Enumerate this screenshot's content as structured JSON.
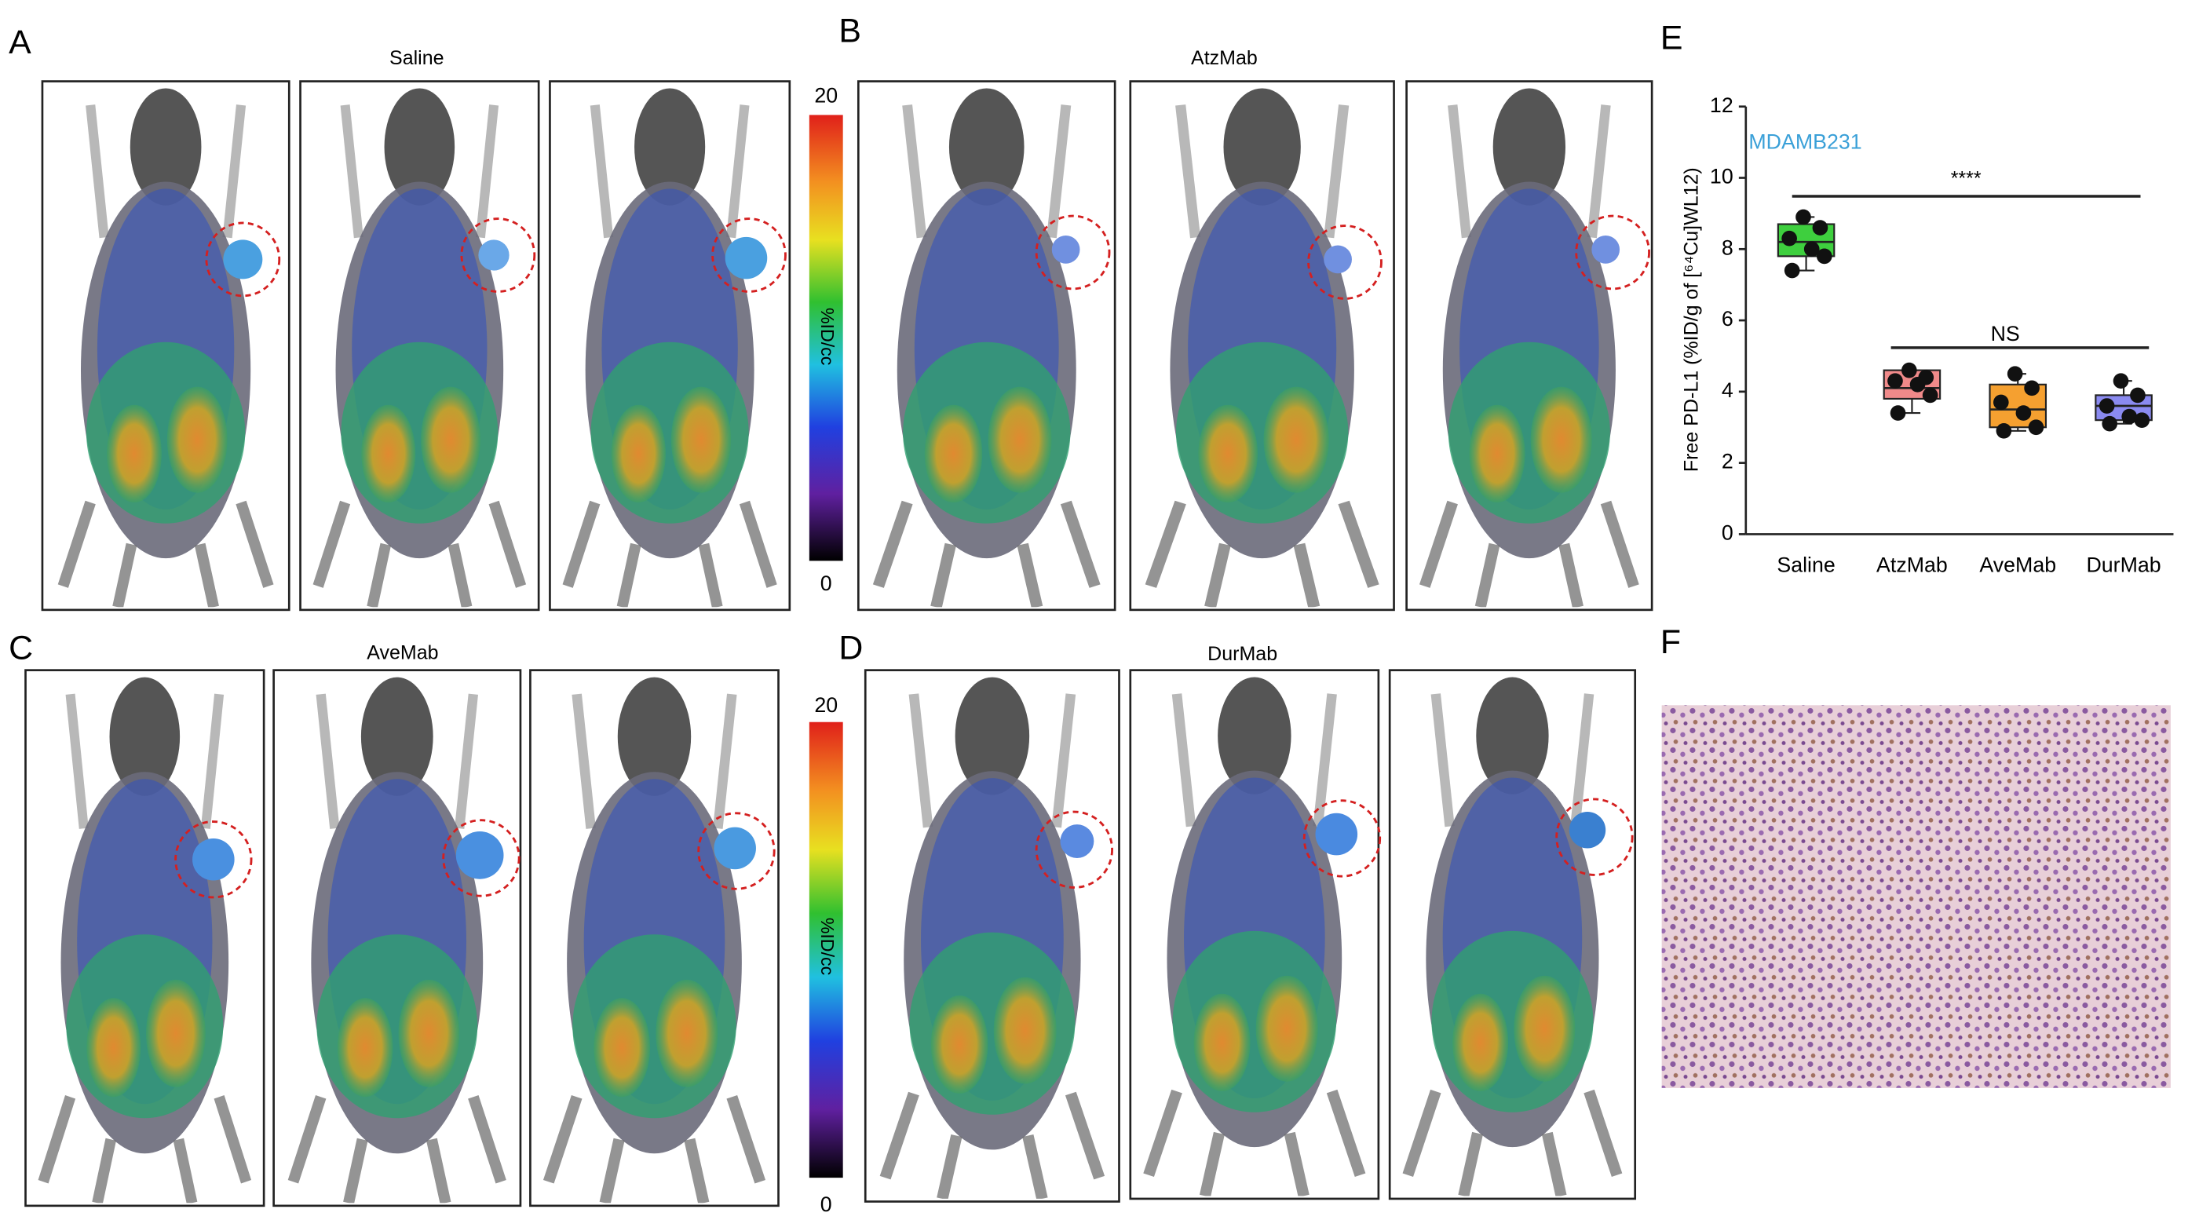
{
  "panels": [
    {
      "letter": "A",
      "title": "Saline"
    },
    {
      "letter": "B",
      "title": "AtzMab"
    },
    {
      "letter": "C",
      "title": "AveMab"
    },
    {
      "letter": "D",
      "title": "DurMab"
    },
    {
      "letter": "E"
    },
    {
      "letter": "F"
    }
  ],
  "colorbars": [
    {
      "max": 20,
      "min": 0,
      "label": "%ID/cc"
    },
    {
      "max": 20,
      "min": 0,
      "label": "%ID/cc"
    }
  ],
  "chart_data": {
    "type": "box",
    "ylabel": "Free PD-L1 (%ID/g of [⁶⁴Cu]WL12)",
    "categories": [
      "Saline",
      "AtzMab",
      "AveMab",
      "DurMab"
    ],
    "colors": [
      "#3ecf3e",
      "#f08a8a",
      "#f5a030",
      "#8a8af0"
    ],
    "boxes": [
      {
        "min": 7.4,
        "q1": 7.8,
        "median": 8.2,
        "q3": 8.7,
        "max": 8.9,
        "points": [
          8.9,
          8.6,
          8.3,
          8.0,
          7.8,
          7.4
        ]
      },
      {
        "min": 3.4,
        "q1": 3.8,
        "median": 4.1,
        "q3": 4.6,
        "max": 4.6,
        "points": [
          4.6,
          4.4,
          4.3,
          4.2,
          3.9,
          3.4
        ]
      },
      {
        "min": 2.9,
        "q1": 3.0,
        "median": 3.5,
        "q3": 4.2,
        "max": 4.5,
        "points": [
          4.5,
          4.1,
          3.7,
          3.4,
          3.0,
          2.9
        ]
      },
      {
        "min": 3.1,
        "q1": 3.2,
        "median": 3.6,
        "q3": 3.9,
        "max": 4.3,
        "points": [
          4.3,
          3.9,
          3.6,
          3.3,
          3.2,
          3.1
        ]
      }
    ],
    "ylim": [
      0,
      12
    ],
    "yticks": [
      0,
      2,
      4,
      6,
      8,
      10,
      12
    ],
    "annotations": [
      {
        "text": "MDAMB231"
      },
      {
        "text": "****"
      },
      {
        "text": "NS"
      }
    ]
  }
}
